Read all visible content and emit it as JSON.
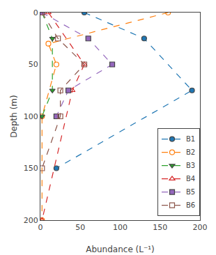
{
  "chart_data": {
    "type": "line",
    "xlabel": "Abundance (L⁻¹)",
    "ylabel": "Depth (m)",
    "xlim": [
      0,
      200
    ],
    "ylim": [
      200,
      0
    ],
    "xticks": [
      0,
      50,
      100,
      150,
      200
    ],
    "yticks": [
      0,
      50,
      100,
      150,
      200
    ],
    "grid": false,
    "legend": "lower right",
    "line_style": "dash",
    "series": [
      {
        "name": "B1",
        "marker": "circle",
        "x": [
          55,
          130,
          190,
          20
        ],
        "values": [
          0,
          25,
          75,
          150
        ]
      },
      {
        "name": "B2",
        "marker": "circle-open",
        "x": [
          160,
          10,
          20,
          2,
          2
        ],
        "values": [
          0,
          30,
          50,
          100,
          200
        ]
      },
      {
        "name": "B3",
        "marker": "triangle-down",
        "x": [
          2,
          15,
          15,
          2
        ],
        "values": [
          0,
          25,
          75,
          100
        ]
      },
      {
        "name": "B4",
        "marker": "triangle-up-open",
        "x": [
          10,
          55,
          40,
          2
        ],
        "values": [
          0,
          50,
          75,
          200
        ]
      },
      {
        "name": "B5",
        "marker": "square",
        "x": [
          2,
          60,
          90,
          35,
          20
        ],
        "values": [
          0,
          25,
          50,
          75,
          100
        ]
      },
      {
        "name": "B6",
        "marker": "square-open",
        "x": [
          2,
          22,
          55,
          25,
          25,
          2
        ],
        "values": [
          0,
          25,
          50,
          75,
          100,
          150
        ]
      }
    ]
  }
}
